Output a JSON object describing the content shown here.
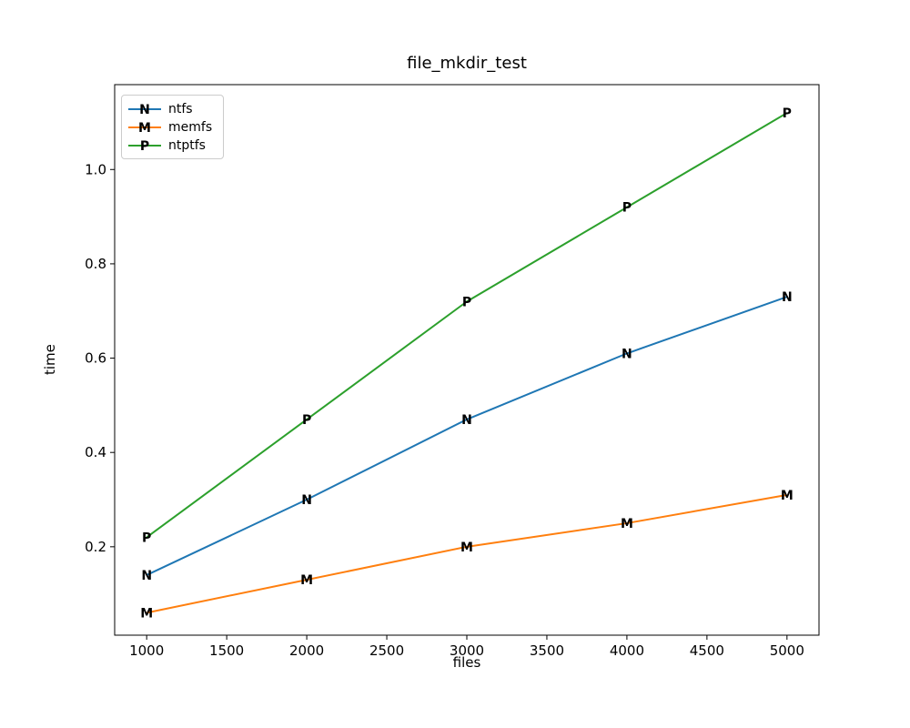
{
  "chart_data": {
    "type": "line",
    "title": "file_mkdir_test",
    "xlabel": "files",
    "ylabel": "time",
    "x": [
      1000,
      2000,
      3000,
      4000,
      5000
    ],
    "series": [
      {
        "name": "ntfs",
        "color": "#1f77b4",
        "marker": "N",
        "values": [
          0.14,
          0.3,
          0.47,
          0.61,
          0.73
        ]
      },
      {
        "name": "memfs",
        "color": "#ff7f0e",
        "marker": "M",
        "values": [
          0.06,
          0.13,
          0.2,
          0.25,
          0.31
        ]
      },
      {
        "name": "ntptfs",
        "color": "#2ca02c",
        "marker": "P",
        "values": [
          0.22,
          0.47,
          0.72,
          0.92,
          1.12
        ]
      }
    ],
    "xticks": [
      1000,
      1500,
      2000,
      2500,
      3000,
      3500,
      4000,
      4500,
      5000
    ],
    "yticks": [
      0.2,
      0.4,
      0.6,
      0.8,
      1.0
    ],
    "xlim": [
      800,
      5200
    ],
    "ylim": [
      0.0125,
      1.18
    ],
    "grid": false,
    "legend_position": "upper left",
    "background": "#ffffff",
    "axis_color": "#000000"
  }
}
